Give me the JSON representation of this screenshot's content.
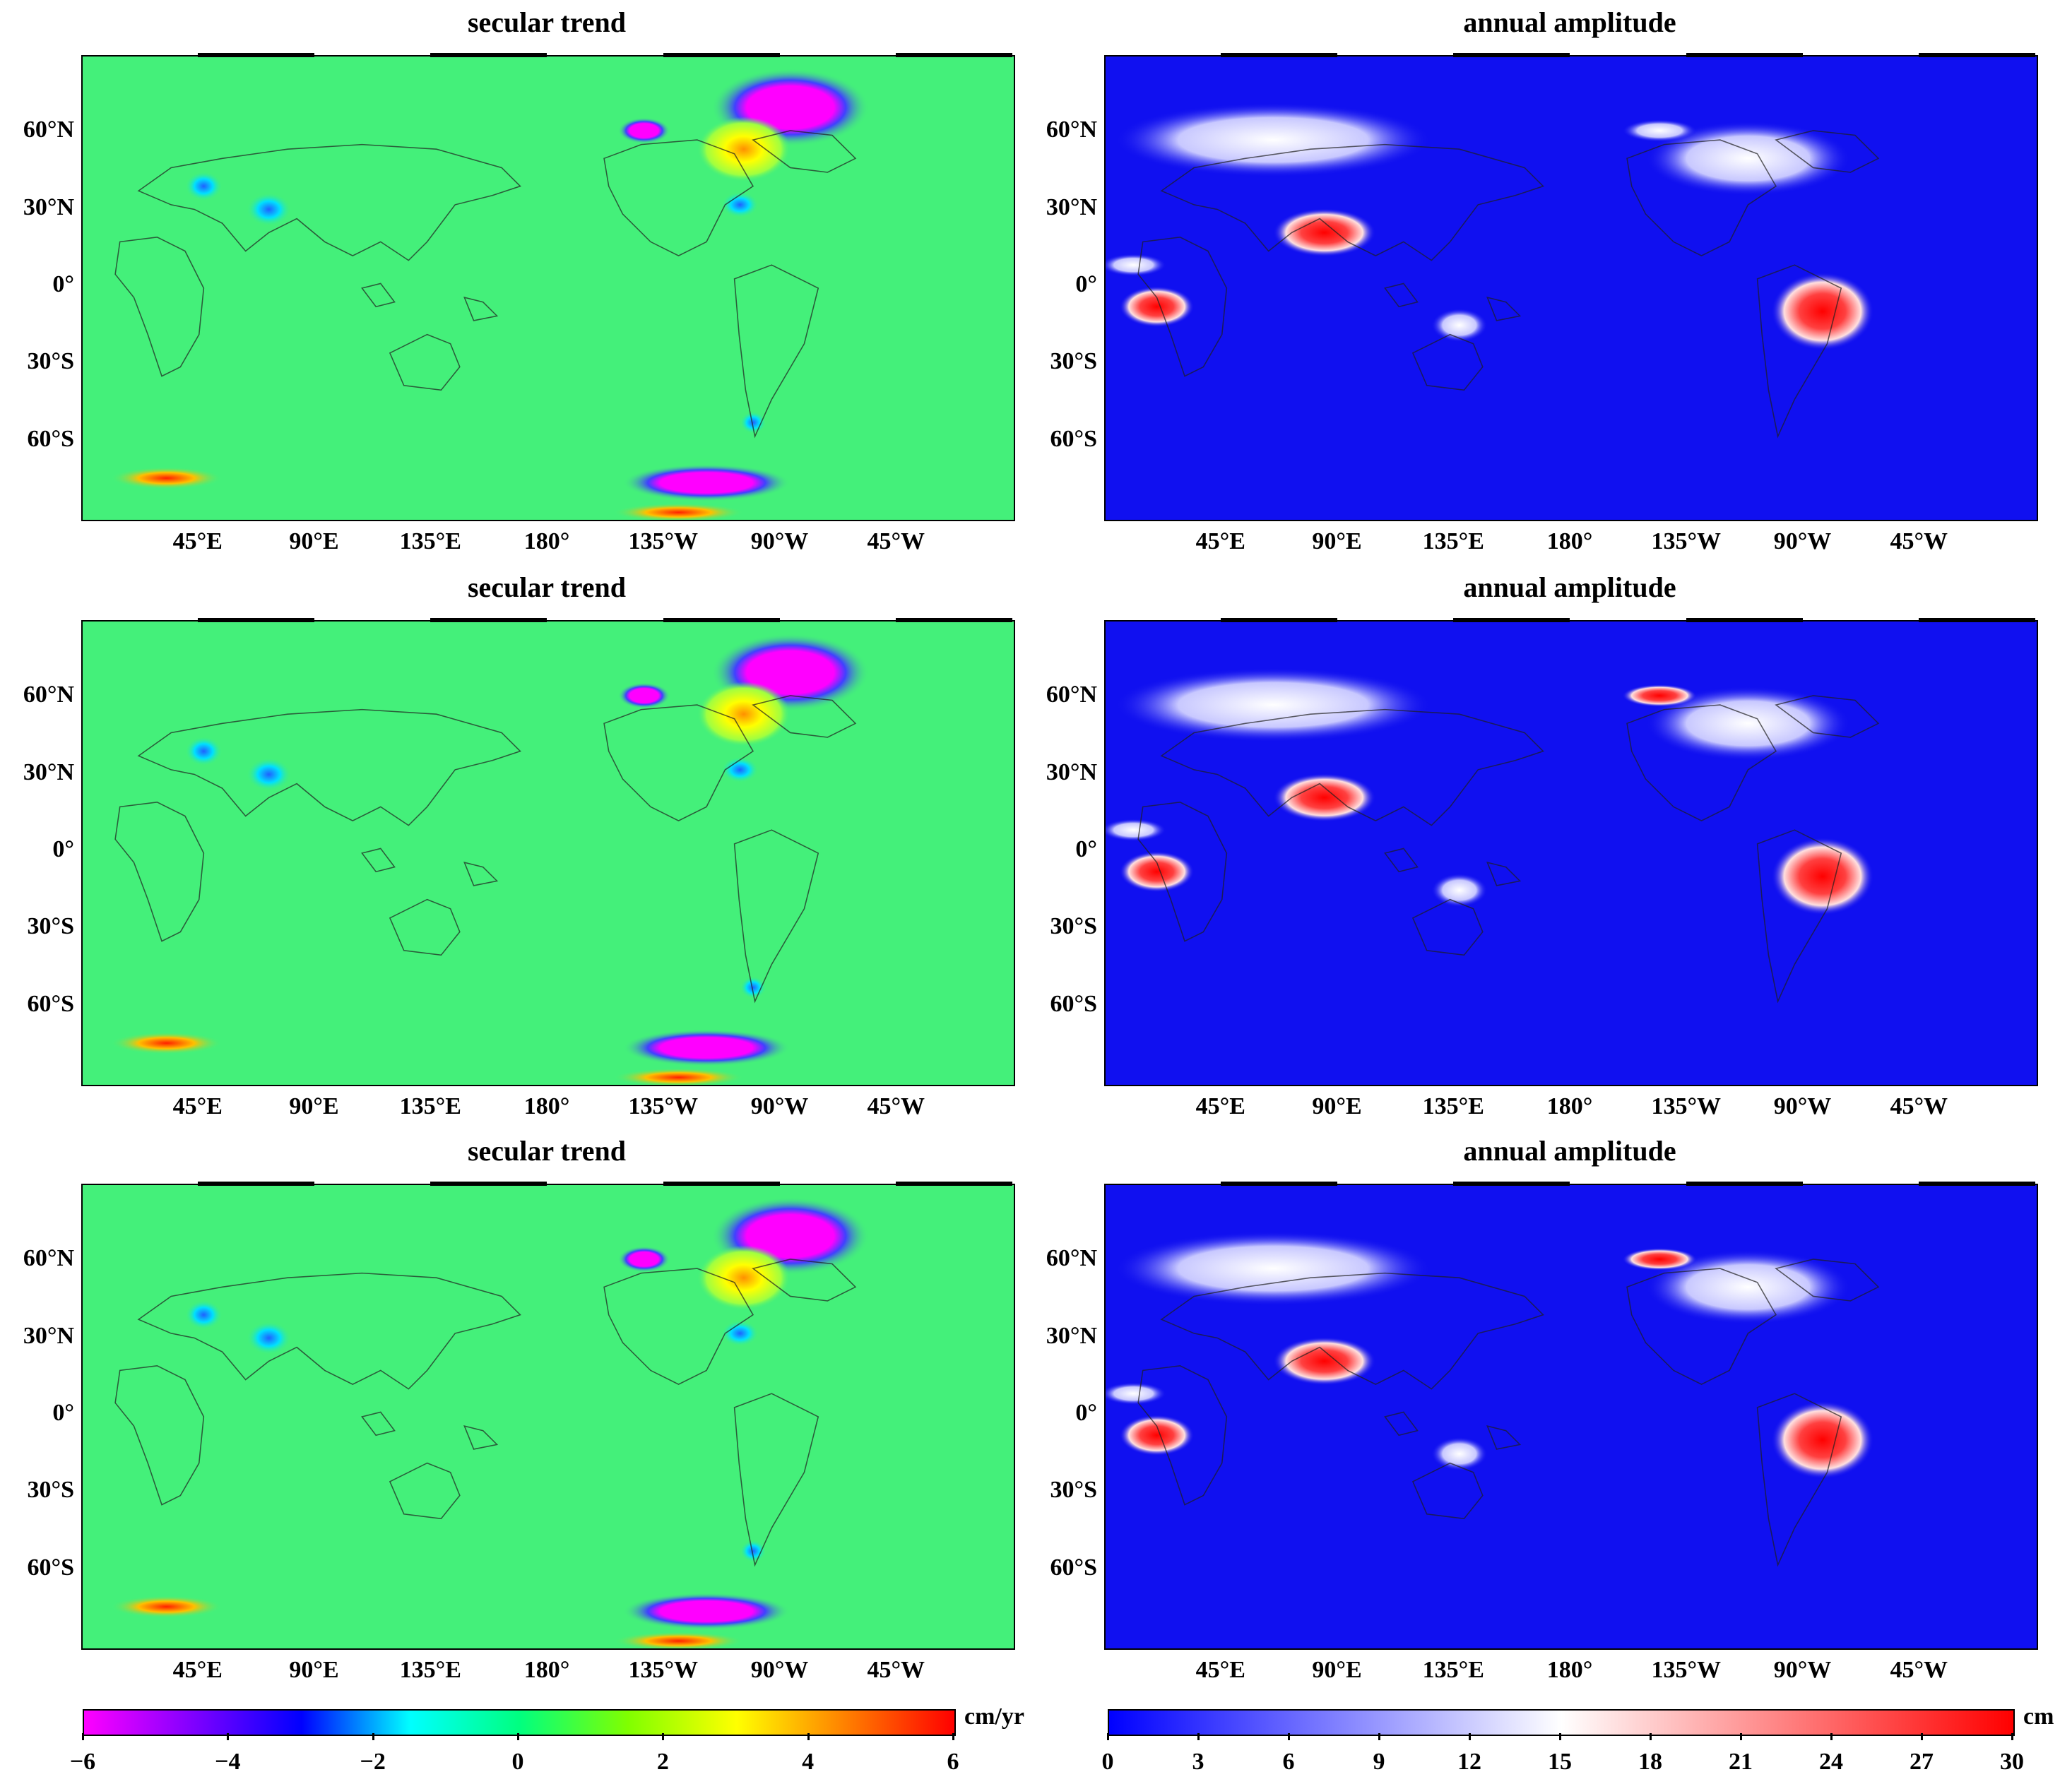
{
  "panels": [
    {
      "title": "secular trend",
      "kind": "trend",
      "row": 0,
      "col": 0
    },
    {
      "title": "annual amplitude",
      "kind": "amplitude",
      "row": 0,
      "col": 1
    },
    {
      "title": "secular trend",
      "kind": "trend",
      "row": 1,
      "col": 0
    },
    {
      "title": "annual amplitude",
      "kind": "amplitude",
      "row": 1,
      "col": 1
    },
    {
      "title": "secular trend",
      "kind": "trend",
      "row": 2,
      "col": 0
    },
    {
      "title": "annual amplitude",
      "kind": "amplitude",
      "row": 2,
      "col": 1
    }
  ],
  "lat_labels": [
    "60°N",
    "30°N",
    "0°",
    "30°S",
    "60°S"
  ],
  "lon_labels": [
    "45°E",
    "90°E",
    "135°E",
    "180°",
    "135°W",
    "90°W",
    "45°W"
  ],
  "colorbars": {
    "trend": {
      "unit": "cm/yr",
      "ticks": [
        "−6",
        "−4",
        "−2",
        "0",
        "2",
        "4",
        "6"
      ],
      "range": [
        -6,
        6
      ],
      "colors": [
        "#ff00ff",
        "#8000ff",
        "#0000ff",
        "#00ffff",
        "#00ff80",
        "#80ff00",
        "#ffff00",
        "#ff8000",
        "#ff0000"
      ]
    },
    "amplitude": {
      "unit": "cm",
      "ticks": [
        "0",
        "3",
        "6",
        "9",
        "12",
        "15",
        "18",
        "21",
        "24",
        "27",
        "30"
      ],
      "range": [
        0,
        30
      ],
      "colors": [
        "#0000ff",
        "#ffffff",
        "#ff0000"
      ]
    }
  },
  "map_colors": {
    "trend_background": "#44f07a",
    "amplitude_background": "#1010f0",
    "coastline": "#202020"
  }
}
